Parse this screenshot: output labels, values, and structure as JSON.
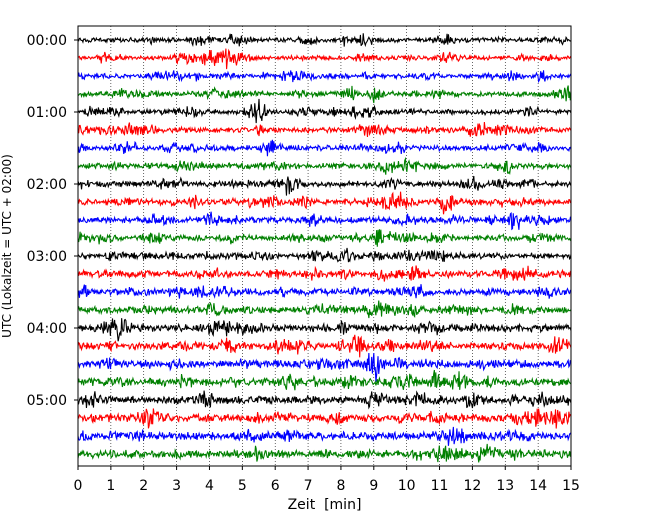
{
  "chart_data": {
    "type": "line",
    "title": "",
    "xlabel": "Zeit  [min]",
    "ylabel": "UTC (Lokalzeit = UTC + 02:00)",
    "xlim": [
      0,
      15
    ],
    "x_ticks": [
      "0",
      "1",
      "2",
      "3",
      "4",
      "5",
      "6",
      "7",
      "8",
      "9",
      "10",
      "11",
      "12",
      "13",
      "14",
      "15"
    ],
    "y_ticks": [
      "00:00",
      "01:00",
      "02:00",
      "03:00",
      "04:00",
      "05:00"
    ],
    "grid": "vertical dotted at each minute",
    "colors_cycle": [
      "#000000",
      "#ff0000",
      "#0000ff",
      "#008000"
    ],
    "trace_start_times": [
      "00:00",
      "00:15",
      "00:30",
      "00:45",
      "01:00",
      "01:15",
      "01:30",
      "01:45",
      "02:00",
      "02:15",
      "02:30",
      "02:45",
      "03:00",
      "03:15",
      "03:30",
      "03:45",
      "04:00",
      "04:15",
      "04:30",
      "04:45",
      "05:00",
      "05:15",
      "05:30",
      "05:45"
    ],
    "trace_minutes_per_row": 15,
    "events": [
      {
        "row": 4,
        "x": 5.5,
        "amp": 1.6
      },
      {
        "row": 5,
        "x": 1.7,
        "amp": 1.4
      },
      {
        "row": 9,
        "x": 11.3,
        "amp": 1.3
      },
      {
        "row": 10,
        "x": 13.3,
        "amp": 1.5
      },
      {
        "row": 18,
        "x": 9.0,
        "amp": 2.0
      },
      {
        "row": 19,
        "x": 11.6,
        "amp": 1.6
      },
      {
        "row": 20,
        "x": 3.9,
        "amp": 1.3
      }
    ]
  }
}
